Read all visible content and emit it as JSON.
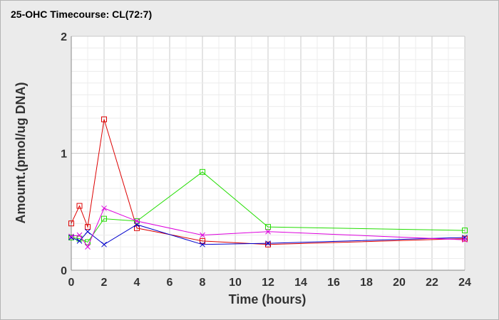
{
  "chart_data": {
    "type": "line",
    "title": "25-OHC Timecourse: CL(72:7)",
    "xlabel": "Time (hours)",
    "ylabel": "Amount.(pmol/ug DNA)",
    "xlim": [
      0,
      24
    ],
    "ylim": [
      0,
      2
    ],
    "x_ticks": [
      0,
      2,
      4,
      6,
      8,
      10,
      12,
      14,
      16,
      18,
      20,
      22,
      24
    ],
    "y_ticks": [
      0,
      1,
      2
    ],
    "grid": true,
    "legend": "none",
    "series": [
      {
        "color": "#dd0000",
        "marker": "square",
        "points": [
          [
            0,
            0.4
          ],
          [
            0.5,
            0.55
          ],
          [
            1,
            0.37
          ],
          [
            2,
            1.29
          ],
          [
            4,
            0.36
          ],
          [
            8,
            0.25
          ],
          [
            12,
            0.22
          ],
          [
            24,
            0.27
          ]
        ]
      },
      {
        "color": "#22dd00",
        "marker": "square",
        "points": [
          [
            0,
            0.28
          ],
          [
            0.5,
            0.27
          ],
          [
            1,
            0.24
          ],
          [
            2,
            0.44
          ],
          [
            4,
            0.42
          ],
          [
            8,
            0.84
          ],
          [
            12,
            0.37
          ],
          [
            24,
            0.34
          ]
        ]
      },
      {
        "color": "#0000cc",
        "marker": "x",
        "points": [
          [
            0,
            0.28
          ],
          [
            0.5,
            0.25
          ],
          [
            1,
            0.33
          ],
          [
            2,
            0.22
          ],
          [
            4,
            0.39
          ],
          [
            8,
            0.22
          ],
          [
            12,
            0.23
          ],
          [
            24,
            0.28
          ]
        ]
      },
      {
        "color": "#dd00dd",
        "marker": "x",
        "points": [
          [
            0,
            0.29
          ],
          [
            0.5,
            0.3
          ],
          [
            1,
            0.2
          ],
          [
            2,
            0.53
          ],
          [
            4,
            0.42
          ],
          [
            8,
            0.3
          ],
          [
            12,
            0.33
          ],
          [
            24,
            0.26
          ]
        ]
      }
    ]
  }
}
